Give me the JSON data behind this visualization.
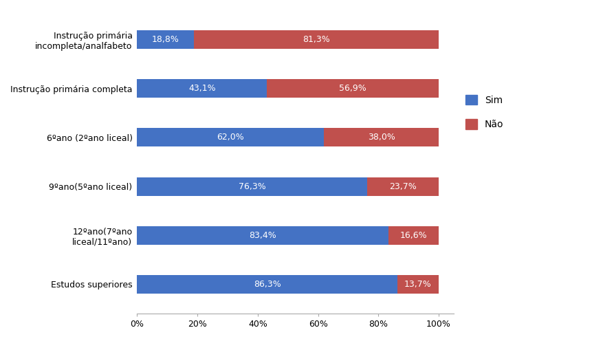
{
  "categories": [
    "Estudos superiores",
    "12ºano(7ºano\nliceal/11ºano)",
    "9ºano(5ºano liceal)",
    "6ºano (2ºano liceal)",
    "Instrução primária completa",
    "Instrução primária\nincompleta/analfabeto"
  ],
  "sim_values": [
    86.3,
    83.4,
    76.3,
    62.0,
    43.1,
    18.8
  ],
  "nao_values": [
    13.7,
    16.6,
    23.7,
    38.0,
    56.9,
    81.3
  ],
  "sim_color": "#4472C4",
  "nao_color": "#C0504D",
  "background_color": "#FFFFFF",
  "bar_height": 0.38,
  "xlim": [
    0,
    105
  ],
  "xticks": [
    0,
    20,
    40,
    60,
    80,
    100
  ],
  "xticklabels": [
    "0%",
    "20%",
    "40%",
    "60%",
    "80%",
    "100%"
  ],
  "legend_sim": "Sim",
  "legend_nao": "Não",
  "label_fontsize": 9,
  "tick_fontsize": 9,
  "legend_fontsize": 10,
  "ytick_fontsize": 9
}
